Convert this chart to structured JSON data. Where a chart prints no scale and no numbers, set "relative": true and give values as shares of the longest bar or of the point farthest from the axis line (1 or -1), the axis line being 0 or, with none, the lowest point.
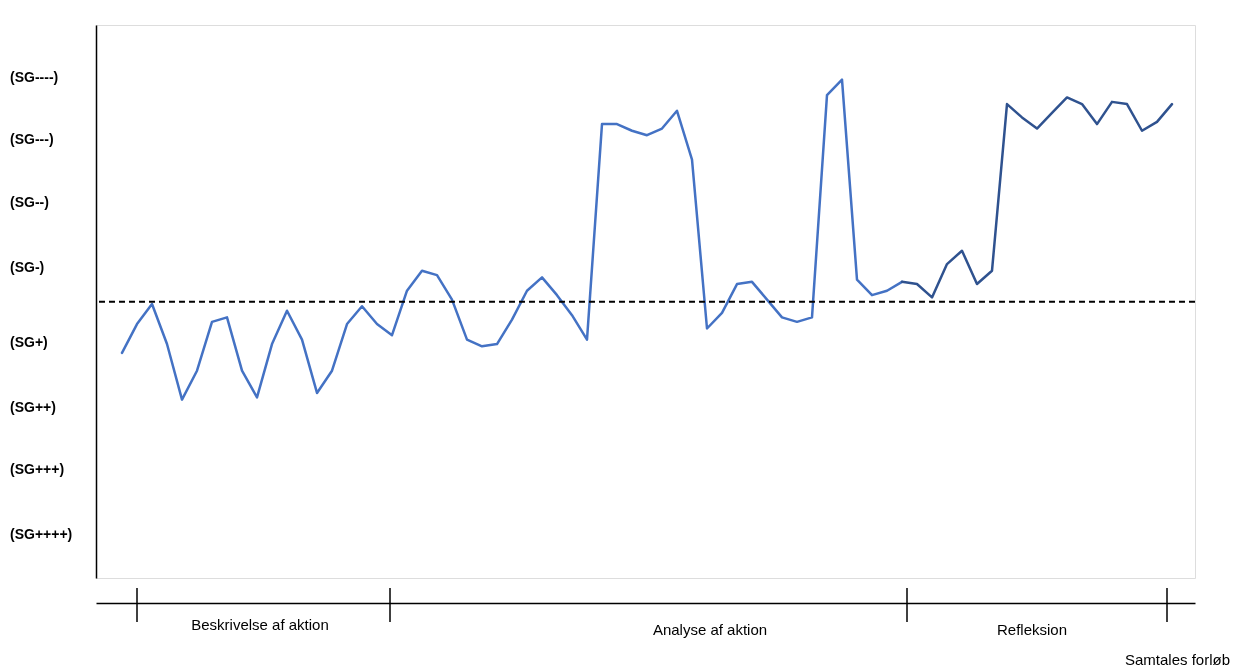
{
  "chart_data": {
    "type": "line",
    "relative": true,
    "categories": [
      null,
      null,
      null,
      null,
      null,
      null,
      null,
      null,
      null,
      null,
      null,
      null,
      null,
      null,
      null,
      null,
      null,
      null,
      null,
      null,
      null,
      null,
      null,
      null,
      null,
      null,
      null,
      null,
      null,
      null,
      null,
      null,
      null,
      null,
      null,
      null,
      null,
      null,
      null,
      null,
      null,
      null,
      null,
      null,
      null,
      null,
      null,
      null,
      null,
      null,
      null,
      null,
      null,
      null,
      null,
      null,
      null,
      null,
      null,
      null,
      null,
      null,
      null,
      null,
      null,
      null,
      null,
      null,
      null,
      null,
      null
    ],
    "annotations": [
      "(SG----)",
      "(SG---)",
      "(SG--)",
      "(SG-)",
      "(SG+)",
      "(SG++)",
      "(SG+++)",
      "(SG++++)",
      "Beskrivelse af aktion",
      "Analyse af aktion",
      "Refleksion",
      "Samtales forløb"
    ],
    "ref_lines": [
      {
        "axis": "y",
        "value": 0,
        "label": null,
        "color": "#000000",
        "line_style": "dashed"
      }
    ],
    "legend": false,
    "marker": "none",
    "line_style": "solid",
    "series": [
      {
        "color": "#4472c4",
        "values": [
          -0.23,
          -0.1,
          -0.01,
          -0.19,
          -0.44,
          -0.31,
          -0.09,
          -0.07,
          -0.31,
          -0.43,
          -0.19,
          -0.04,
          -0.17,
          -0.41,
          -0.31,
          -0.1,
          -0.02,
          -0.1,
          -0.15,
          0.05,
          0.14,
          0.12,
          0.01,
          -0.17,
          -0.2,
          -0.19,
          -0.08,
          0.05,
          0.11,
          0.03,
          -0.06,
          -0.17,
          0.8,
          0.8,
          0.77,
          0.75,
          0.78,
          0.86,
          0.64,
          -0.12,
          -0.05,
          0.08,
          0.09,
          0.01,
          -0.07,
          -0.09,
          -0.07,
          0.93,
          1,
          0.1,
          0.03,
          0.05,
          0.09,
          null,
          null,
          null,
          null,
          null,
          null,
          null,
          null,
          null,
          null,
          null,
          null,
          null,
          null,
          null,
          null,
          null,
          null
        ]
      },
      {
        "color": "#2f528f",
        "values": [
          null,
          null,
          null,
          null,
          null,
          null,
          null,
          null,
          null,
          null,
          null,
          null,
          null,
          null,
          null,
          null,
          null,
          null,
          null,
          null,
          null,
          null,
          null,
          null,
          null,
          null,
          null,
          null,
          null,
          null,
          null,
          null,
          null,
          null,
          null,
          null,
          null,
          null,
          null,
          null,
          null,
          null,
          null,
          null,
          null,
          null,
          null,
          null,
          null,
          null,
          null,
          null,
          0.09,
          0.08,
          0.02,
          0.17,
          0.23,
          0.08,
          0.14,
          0.89,
          0.83,
          0.78,
          0.85,
          0.92,
          0.89,
          0.8,
          0.9,
          0.89,
          0.77,
          0.81,
          0.89
        ]
      }
    ]
  }
}
